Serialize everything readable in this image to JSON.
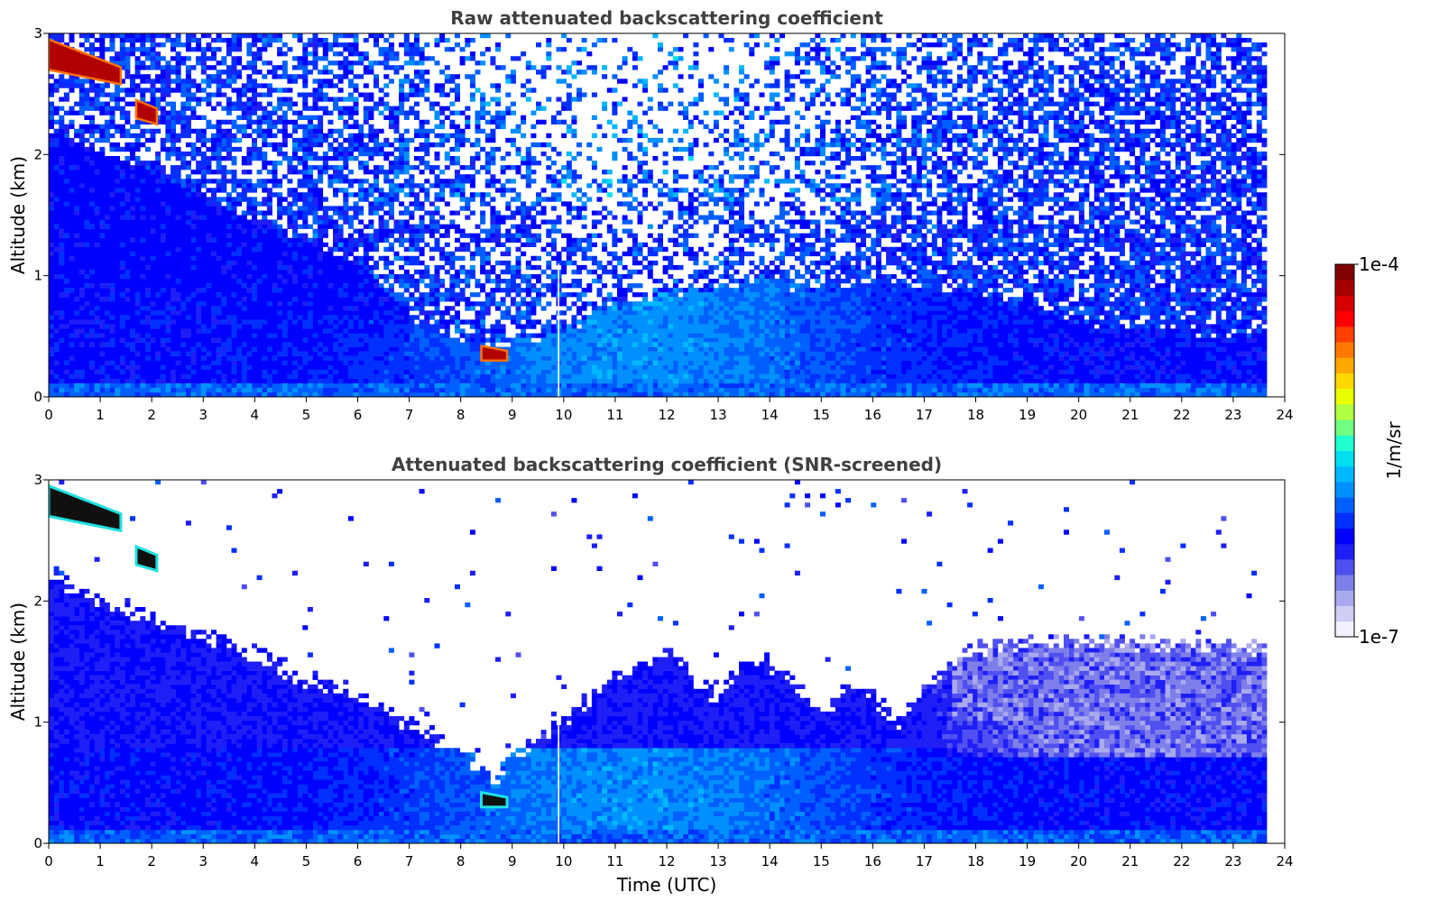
{
  "chart_data": [
    {
      "type": "heatmap",
      "title": "Raw attenuated backscattering coefficient",
      "xlabel": "",
      "ylabel": "Altitude (km)",
      "xlim": [
        0,
        24
      ],
      "ylim": [
        0,
        3
      ],
      "x_ticks": [
        "0",
        "1",
        "2",
        "3",
        "4",
        "5",
        "6",
        "7",
        "8",
        "9",
        "10",
        "11",
        "12",
        "13",
        "14",
        "15",
        "16",
        "17",
        "18",
        "19",
        "20",
        "21",
        "22",
        "23",
        "24"
      ],
      "y_ticks": [
        "0",
        "1",
        "2",
        "3"
      ],
      "data_end_time": 23.65,
      "noise_white_fraction": 0.45,
      "boundary_layer_top_km": [
        [
          0,
          1.0
        ],
        [
          1,
          0.95
        ],
        [
          2,
          0.9
        ],
        [
          3,
          0.85
        ],
        [
          4,
          0.8
        ],
        [
          5,
          0.75
        ],
        [
          6,
          0.65
        ],
        [
          7,
          0.65
        ],
        [
          8,
          0.5
        ],
        [
          8.6,
          0.4
        ],
        [
          9,
          0.45
        ],
        [
          10,
          0.55
        ],
        [
          11,
          0.75
        ],
        [
          12,
          0.85
        ],
        [
          13,
          0.9
        ],
        [
          14,
          0.95
        ],
        [
          15,
          0.9
        ],
        [
          16,
          0.95
        ],
        [
          17,
          0.9
        ],
        [
          18,
          0.85
        ],
        [
          19,
          0.75
        ],
        [
          20,
          0.65
        ],
        [
          21,
          0.55
        ],
        [
          22,
          0.55
        ],
        [
          23,
          0.5
        ],
        [
          23.65,
          0.5
        ]
      ],
      "aerosol_layer_top_km": [
        [
          0,
          2.2
        ],
        [
          2,
          1.85
        ],
        [
          4,
          1.45
        ],
        [
          6,
          1.1
        ],
        [
          7,
          0.7
        ]
      ],
      "cloud_features": [
        {
          "start_time": 0.0,
          "end_time": 1.4,
          "top_start_km": 2.95,
          "bottom_start_km": 2.7,
          "top_end_km": 2.72,
          "bottom_end_km": 2.58
        },
        {
          "start_time": 1.7,
          "end_time": 2.1,
          "top_start_km": 2.45,
          "bottom_start_km": 2.3,
          "top_end_km": 2.38,
          "bottom_end_km": 2.25
        },
        {
          "start_time": 8.4,
          "end_time": 8.9,
          "top_start_km": 0.42,
          "bottom_start_km": 0.3,
          "top_end_km": 0.38,
          "bottom_end_km": 0.3
        }
      ]
    },
    {
      "type": "heatmap",
      "title": "Attenuated backscattering coefficient (SNR-screened)",
      "xlabel": "Time (UTC)",
      "ylabel": "Altitude (km)",
      "xlim": [
        0,
        24
      ],
      "ylim": [
        0,
        3
      ],
      "x_ticks": [
        "0",
        "1",
        "2",
        "3",
        "4",
        "5",
        "6",
        "7",
        "8",
        "9",
        "10",
        "11",
        "12",
        "13",
        "14",
        "15",
        "16",
        "17",
        "18",
        "19",
        "20",
        "21",
        "22",
        "23",
        "24"
      ],
      "y_ticks": [
        "0",
        "1",
        "2",
        "3"
      ],
      "data_end_time": 23.65,
      "screened_top_km": [
        [
          0,
          2.2
        ],
        [
          1,
          2.0
        ],
        [
          2,
          1.85
        ],
        [
          3,
          1.7
        ],
        [
          4,
          1.55
        ],
        [
          5,
          1.35
        ],
        [
          6,
          1.2
        ],
        [
          7,
          1.0
        ],
        [
          8,
          0.75
        ],
        [
          8.6,
          0.5
        ],
        [
          9,
          0.7
        ],
        [
          10,
          1.0
        ],
        [
          11,
          1.4
        ],
        [
          12,
          1.55
        ],
        [
          13,
          1.2
        ],
        [
          13.5,
          1.5
        ],
        [
          14,
          1.5
        ],
        [
          14.5,
          1.3
        ],
        [
          15,
          1.05
        ],
        [
          15.5,
          1.3
        ],
        [
          16,
          1.2
        ],
        [
          16.5,
          1.0
        ],
        [
          17,
          1.3
        ],
        [
          18,
          1.6
        ],
        [
          19,
          1.65
        ],
        [
          20,
          1.65
        ],
        [
          21,
          1.65
        ],
        [
          22,
          1.65
        ],
        [
          23,
          1.65
        ],
        [
          23.65,
          1.6
        ]
      ],
      "cloud_features": [
        {
          "start_time": 0.0,
          "end_time": 1.4,
          "top_start_km": 2.95,
          "bottom_start_km": 2.7,
          "top_end_km": 2.72,
          "bottom_end_km": 2.58
        },
        {
          "start_time": 1.7,
          "end_time": 2.1,
          "top_start_km": 2.45,
          "bottom_start_km": 2.3,
          "top_end_km": 2.38,
          "bottom_end_km": 2.25
        },
        {
          "start_time": 8.4,
          "end_time": 8.9,
          "top_start_km": 0.42,
          "bottom_start_km": 0.3,
          "top_end_km": 0.38,
          "bottom_end_km": 0.3
        }
      ]
    }
  ],
  "colorbar": {
    "label": "1/m/sr",
    "max_label": "1e-4",
    "min_label": "1e-7",
    "colors": [
      "#f2f2ff",
      "#cfcff5",
      "#a9a9ee",
      "#7f7fea",
      "#5050f0",
      "#1e1ef5",
      "#0000ff",
      "#0030ff",
      "#0060ff",
      "#0090ff",
      "#00b8ff",
      "#00e0f0",
      "#20ffd0",
      "#70ff80",
      "#b0ff40",
      "#e8ff00",
      "#ffd800",
      "#ffa800",
      "#ff7800",
      "#ff4000",
      "#ff0000",
      "#d80000",
      "#a80000",
      "#800000"
    ]
  }
}
